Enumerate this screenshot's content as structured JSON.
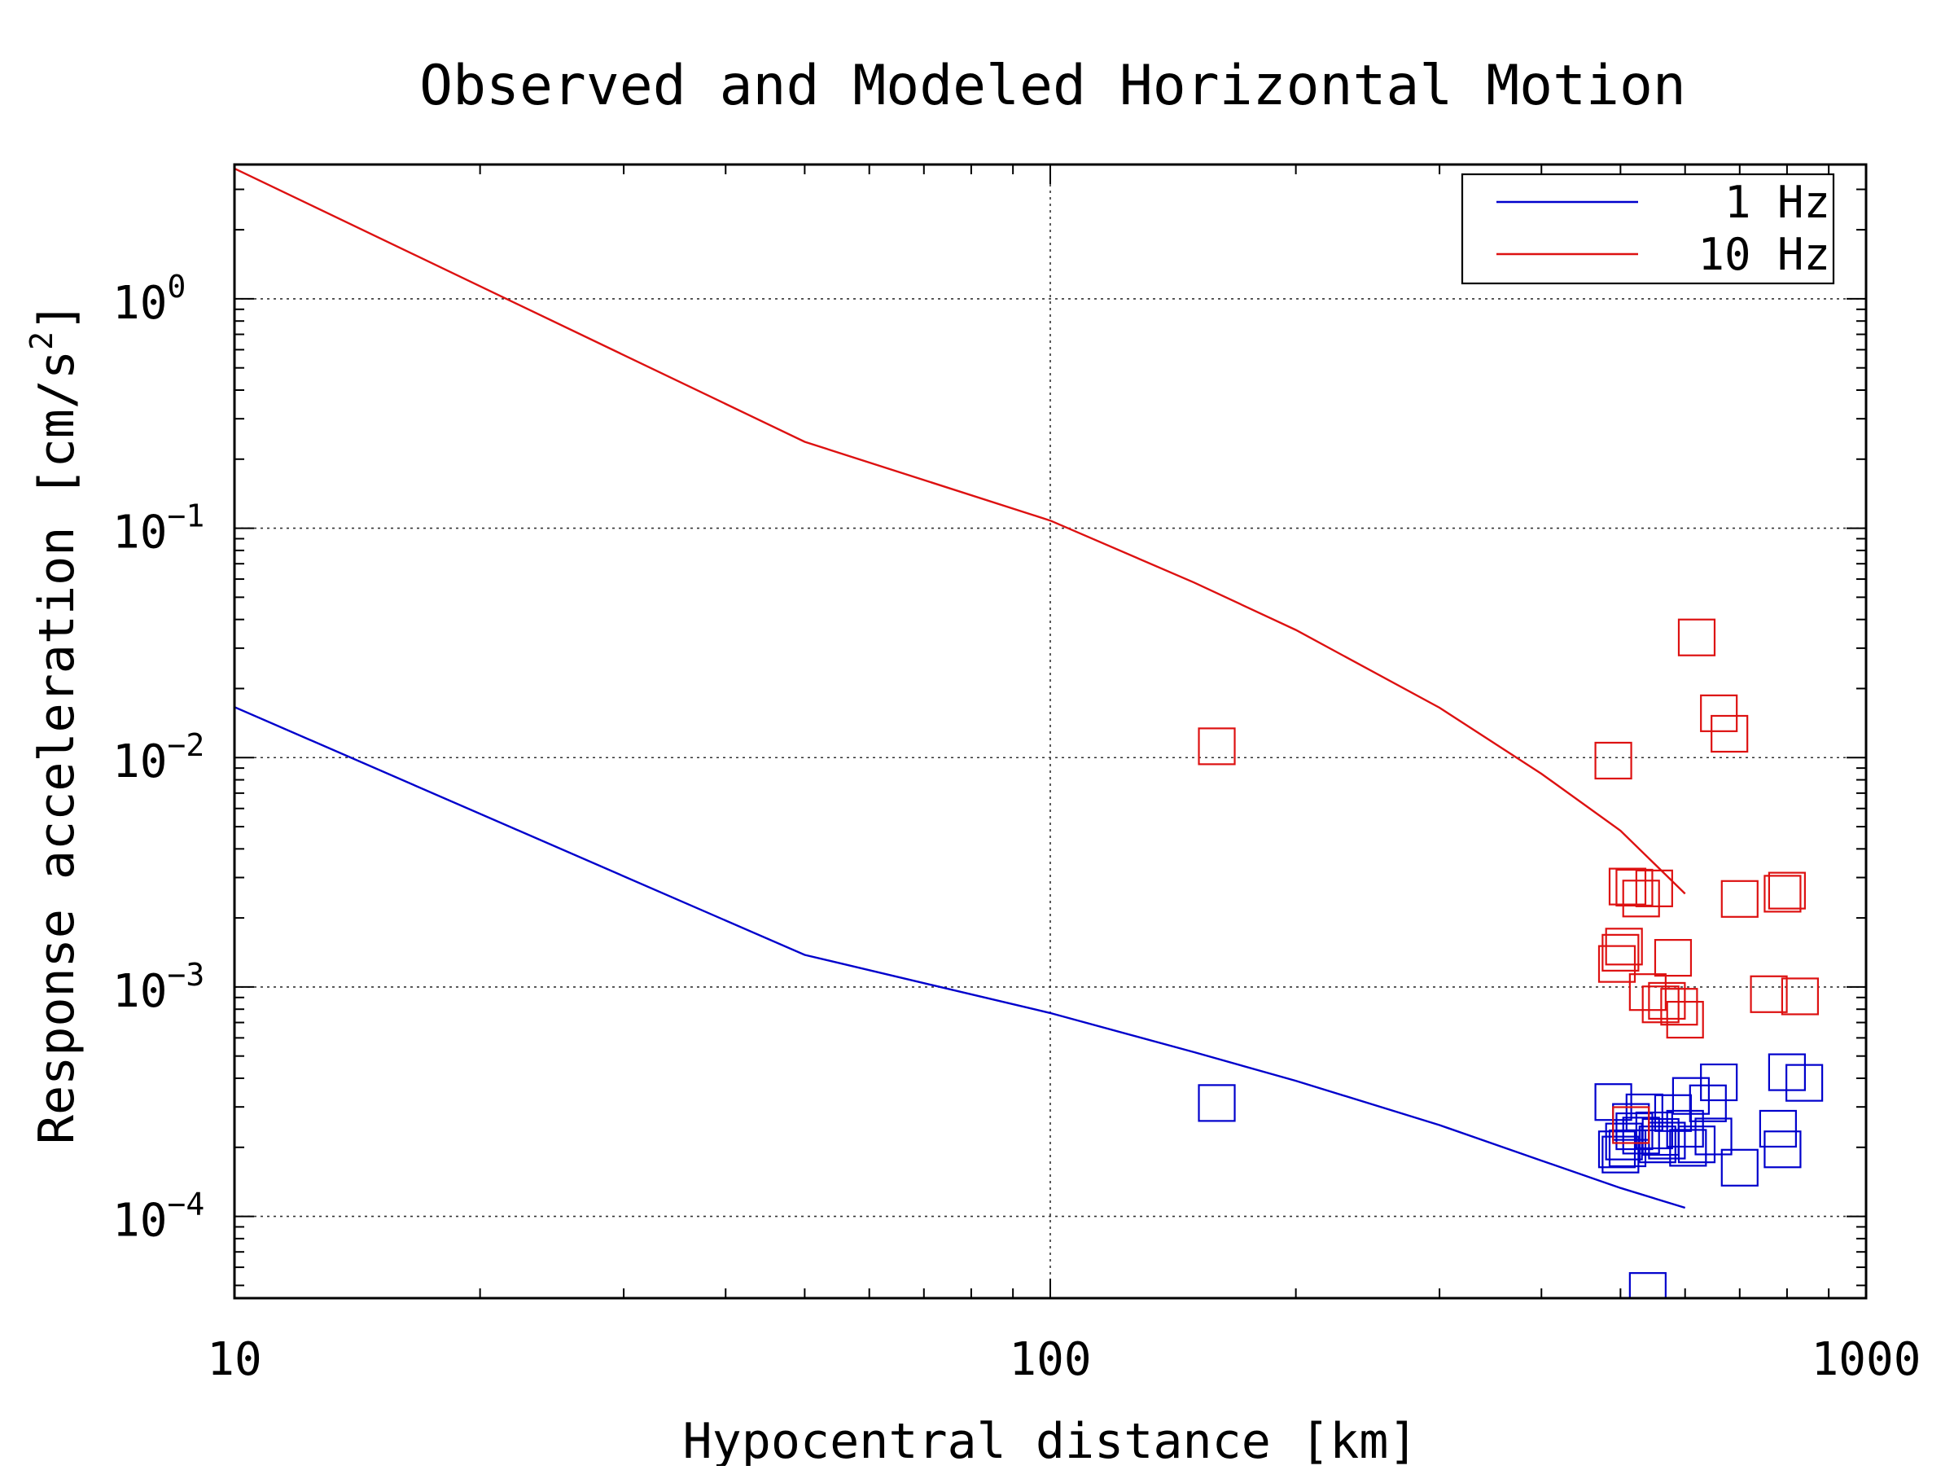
{
  "chart_data": {
    "type": "scatter",
    "title": "Observed and Modeled Horizontal Motion",
    "xlabel": "Hypocentral distance [km]",
    "ylabel": "Response acceleration [cm/s",
    "ylabel_superscript": "2",
    "ylabel_suffix": "]",
    "x_scale": "log",
    "y_scale": "log",
    "xlim": [
      10,
      1000
    ],
    "ylim": [
      4.4e-05,
      3.85
    ],
    "x_ticks": [
      10,
      100,
      1000
    ],
    "x_tick_labels": [
      "10",
      "100",
      "1000"
    ],
    "y_ticks": [
      0.0001,
      0.001,
      0.01,
      0.1,
      1
    ],
    "y_tick_labels": [
      {
        "base": "10",
        "exp": "−4"
      },
      {
        "base": "10",
        "exp": "−3"
      },
      {
        "base": "10",
        "exp": "−2"
      },
      {
        "base": "10",
        "exp": "−1"
      },
      {
        "base": "10",
        "exp": "0"
      }
    ],
    "grid": true,
    "legend_position": "top-right",
    "series": [
      {
        "name": "1 Hz",
        "color": "#0000cc",
        "model": {
          "x": [
            10,
            50,
            100,
            150,
            200,
            300,
            400,
            500,
            600
          ],
          "y": [
            0.0166,
            0.00138,
            0.00077,
            0.00052,
            0.00039,
            0.00025,
            0.000175,
            0.000133,
            0.000109
          ]
        },
        "observed": {
          "x": [
            160,
            490,
            495,
            500,
            505,
            510,
            515,
            520,
            530,
            535,
            540,
            550,
            555,
            560,
            570,
            580,
            600,
            605,
            610,
            620,
            640,
            650,
            660,
            700,
            780,
            790,
            800,
            840
          ],
          "y": [
            0.000312,
            0.000315,
            0.000196,
            0.000186,
            0.000212,
            0.000198,
            0.000258,
            0.000235,
            0.000225,
            0.000284,
            4.73e-05,
            0.000237,
            0.000206,
            0.000222,
            0.000214,
            0.000282,
            0.000241,
            0.000199,
            0.000335,
            0.000206,
            0.000311,
            0.000223,
            0.000384,
            0.000163,
            0.000241,
            0.000196,
            0.000425,
            0.000382
          ]
        }
      },
      {
        "name": "10 Hz",
        "color": "#dd1111",
        "model": {
          "x": [
            10,
            50,
            100,
            150,
            200,
            300,
            400,
            500,
            600
          ],
          "y": [
            3.7,
            0.238,
            0.108,
            0.058,
            0.036,
            0.0165,
            0.0085,
            0.0048,
            0.00255
          ]
        },
        "observed": {
          "x": [
            160,
            490,
            495,
            500,
            505,
            510,
            515,
            520,
            530,
            540,
            550,
            560,
            570,
            580,
            590,
            600,
            620,
            660,
            680,
            700,
            760,
            790,
            800,
            830
          ],
          "y": [
            0.0112,
            0.0097,
            0.00126,
            0.00141,
            0.0015,
            0.00274,
            0.00025,
            0.00271,
            0.00243,
            0.00095,
            0.00269,
            0.00084,
            0.00087,
            0.00134,
            0.00082,
            0.00072,
            0.0334,
            0.0156,
            0.0127,
            0.00242,
            0.00093,
            0.00255,
            0.00263,
            0.00091
          ]
        }
      }
    ]
  }
}
